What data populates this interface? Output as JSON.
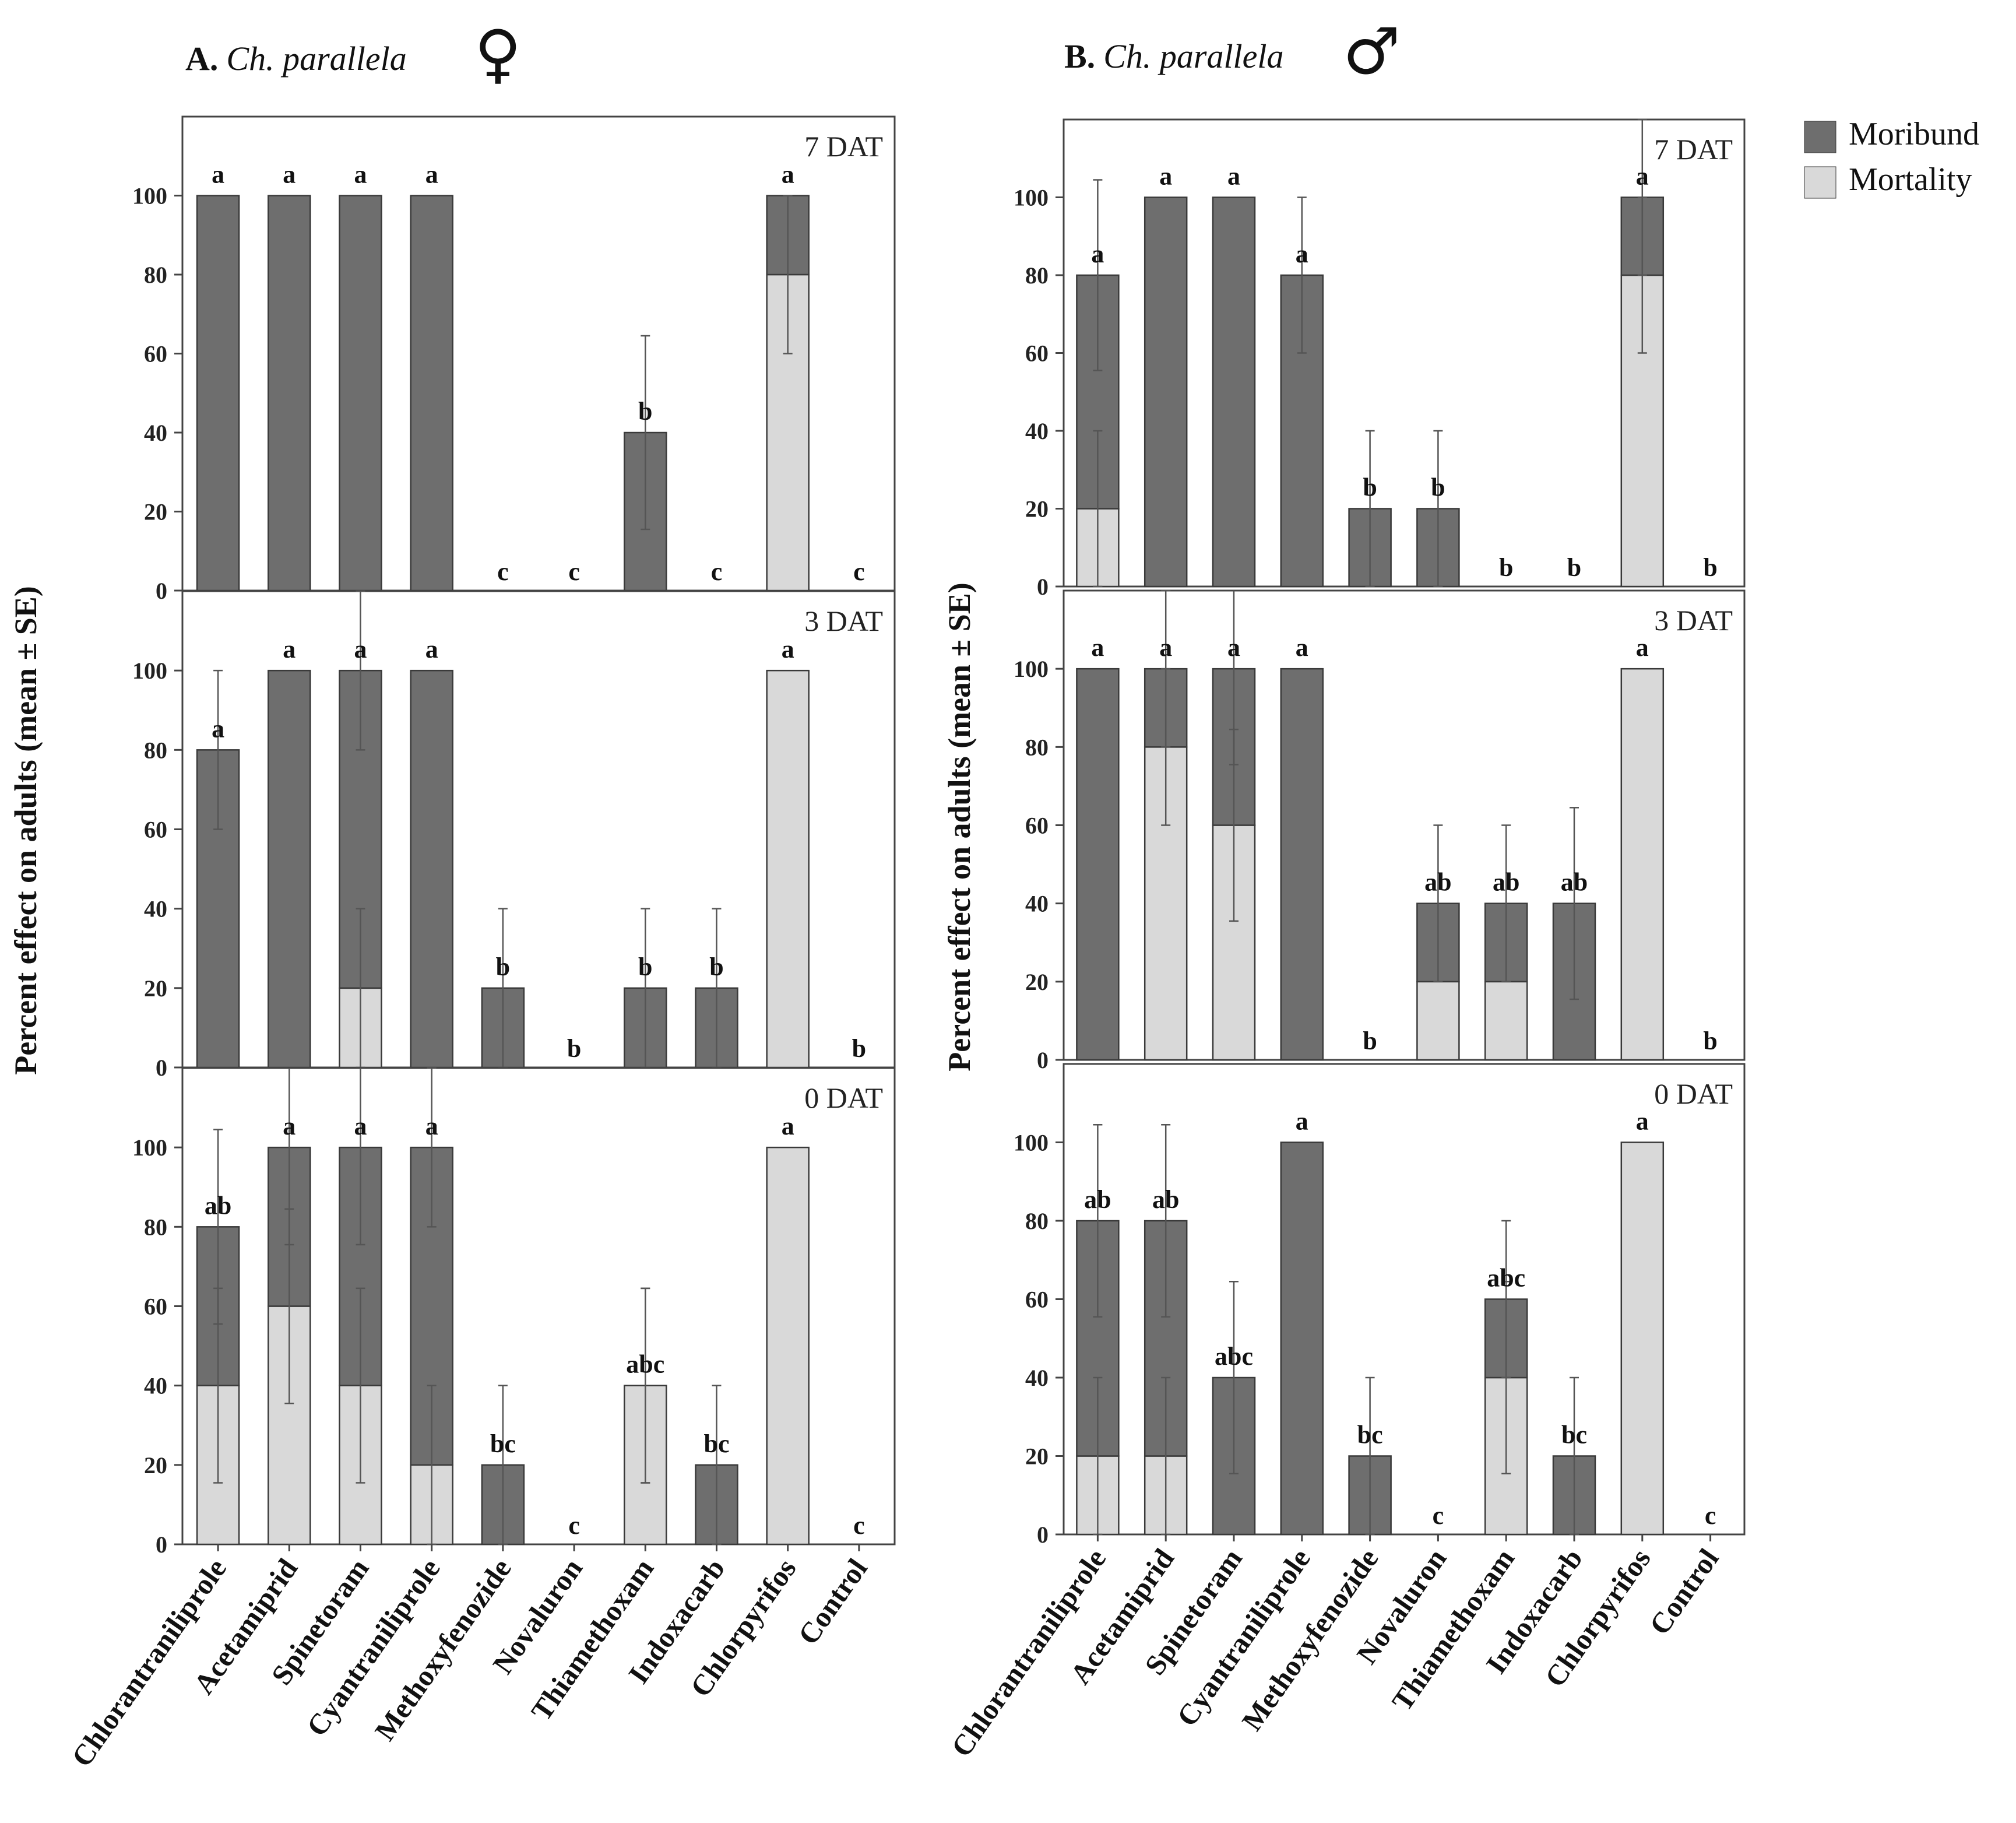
{
  "colors": {
    "moribund": "#6e6e6e",
    "mortality": "#d9d9d9",
    "edge": "#3a3a3a",
    "error_bar": "#555555"
  },
  "legend": [
    {
      "key": "moribund",
      "label": "Moribund"
    },
    {
      "key": "mortality",
      "label": "Mortality"
    }
  ],
  "chart_data": [
    {
      "type": "bar",
      "stacked": true,
      "title": {
        "label": "A.",
        "species": "Ch. parallela",
        "sex_symbol": "♀"
      },
      "ylabel": "Percent effect on adults (mean ± SE)",
      "ylim": [
        0,
        120
      ],
      "yticks": [
        0,
        20,
        40,
        60,
        80,
        100
      ],
      "categories": [
        "Chlorantraniliprole",
        "Acetamiprid",
        "Spinetoram",
        "Cyantraniliprole",
        "Methoxyfenozide",
        "Novaluron",
        "Thiamethoxam",
        "Indoxacarb",
        "Chlorpyrifos",
        "Control"
      ],
      "subpanels": [
        {
          "label": "7 DAT",
          "mortality": [
            0,
            0,
            0,
            0,
            0,
            0,
            0,
            0,
            80,
            0
          ],
          "total": [
            100,
            100,
            100,
            100,
            0,
            0,
            40,
            0,
            100,
            0
          ],
          "err_total": [
            0,
            0,
            0,
            0,
            0,
            0,
            24.5,
            0,
            0,
            0
          ],
          "err_mortality": [
            0,
            0,
            0,
            0,
            0,
            0,
            0,
            0,
            20,
            0
          ],
          "letters": [
            "a",
            "a",
            "a",
            "a",
            "c",
            "c",
            "b",
            "c",
            "a",
            "c"
          ]
        },
        {
          "label": "3 DAT",
          "mortality": [
            0,
            0,
            20,
            0,
            0,
            0,
            0,
            0,
            100,
            0
          ],
          "total": [
            80,
            100,
            100,
            100,
            20,
            0,
            20,
            20,
            100,
            0
          ],
          "err_total": [
            20,
            0,
            20,
            0,
            20,
            0,
            20,
            20,
            0,
            0
          ],
          "err_mortality": [
            0,
            0,
            20,
            0,
            0,
            0,
            0,
            0,
            0,
            0
          ],
          "letters": [
            "a",
            "a",
            "a",
            "a",
            "b",
            "b",
            "b",
            "b",
            "a",
            "b"
          ]
        },
        {
          "label": "0 DAT",
          "mortality": [
            40,
            60,
            40,
            20,
            0,
            0,
            40,
            0,
            100,
            0
          ],
          "total": [
            80,
            100,
            100,
            100,
            20,
            0,
            40,
            20,
            100,
            0
          ],
          "err_total": [
            24.5,
            24.5,
            24.5,
            20,
            20,
            0,
            24.5,
            20,
            0,
            0
          ],
          "err_mortality": [
            24.5,
            24.5,
            24.5,
            20,
            0,
            0,
            24.5,
            0,
            0,
            0
          ],
          "letters": [
            "ab",
            "a",
            "a",
            "a",
            "bc",
            "c",
            "abc",
            "bc",
            "a",
            "c"
          ]
        }
      ]
    },
    {
      "type": "bar",
      "stacked": true,
      "title": {
        "label": "B.",
        "species": "Ch. parallela",
        "sex_symbol": "♂"
      },
      "ylabel": "Percent effect on adults (mean ± SE)",
      "ylim": [
        0,
        120
      ],
      "yticks": [
        0,
        20,
        40,
        60,
        80,
        100
      ],
      "categories": [
        "Chlorantraniliprole",
        "Acetamiprid",
        "Spinetoram",
        "Cyantraniliprole",
        "Methoxyfenozide",
        "Novaluron",
        "Thiamethoxam",
        "Indoxacarb",
        "Chlorpyrifos",
        "Control"
      ],
      "subpanels": [
        {
          "label": "7 DAT",
          "mortality": [
            20,
            0,
            0,
            0,
            0,
            0,
            0,
            0,
            80,
            0
          ],
          "total": [
            80,
            100,
            100,
            80,
            20,
            20,
            0,
            0,
            100,
            0
          ],
          "err_total": [
            24.5,
            0,
            0,
            20,
            20,
            20,
            0,
            0,
            20,
            0
          ],
          "err_mortality": [
            20,
            0,
            0,
            0,
            0,
            0,
            0,
            0,
            20,
            0
          ],
          "letters": [
            "a",
            "a",
            "a",
            "a",
            "b",
            "b",
            "b",
            "b",
            "a",
            "b"
          ]
        },
        {
          "label": "3 DAT",
          "mortality": [
            0,
            80,
            60,
            0,
            0,
            20,
            20,
            0,
            100,
            0
          ],
          "total": [
            100,
            100,
            100,
            100,
            0,
            40,
            40,
            40,
            100,
            0
          ],
          "err_total": [
            0,
            20,
            24.5,
            0,
            0,
            20,
            20,
            24.5,
            0,
            0
          ],
          "err_mortality": [
            0,
            20,
            24.5,
            0,
            0,
            0,
            0,
            0,
            0,
            0
          ],
          "letters": [
            "a",
            "a",
            "a",
            "a",
            "b",
            "ab",
            "ab",
            "ab",
            "a",
            "b"
          ]
        },
        {
          "label": "0 DAT",
          "mortality": [
            20,
            20,
            0,
            0,
            0,
            0,
            40,
            0,
            100,
            0
          ],
          "total": [
            80,
            80,
            40,
            100,
            20,
            0,
            60,
            20,
            100,
            0
          ],
          "err_total": [
            24.5,
            24.5,
            24.5,
            0,
            20,
            0,
            20,
            20,
            0,
            0
          ],
          "err_mortality": [
            20,
            20,
            0,
            0,
            0,
            0,
            24.5,
            0,
            0,
            0
          ],
          "letters": [
            "ab",
            "ab",
            "abc",
            "a",
            "bc",
            "c",
            "abc",
            "bc",
            "a",
            "c"
          ]
        }
      ]
    }
  ]
}
